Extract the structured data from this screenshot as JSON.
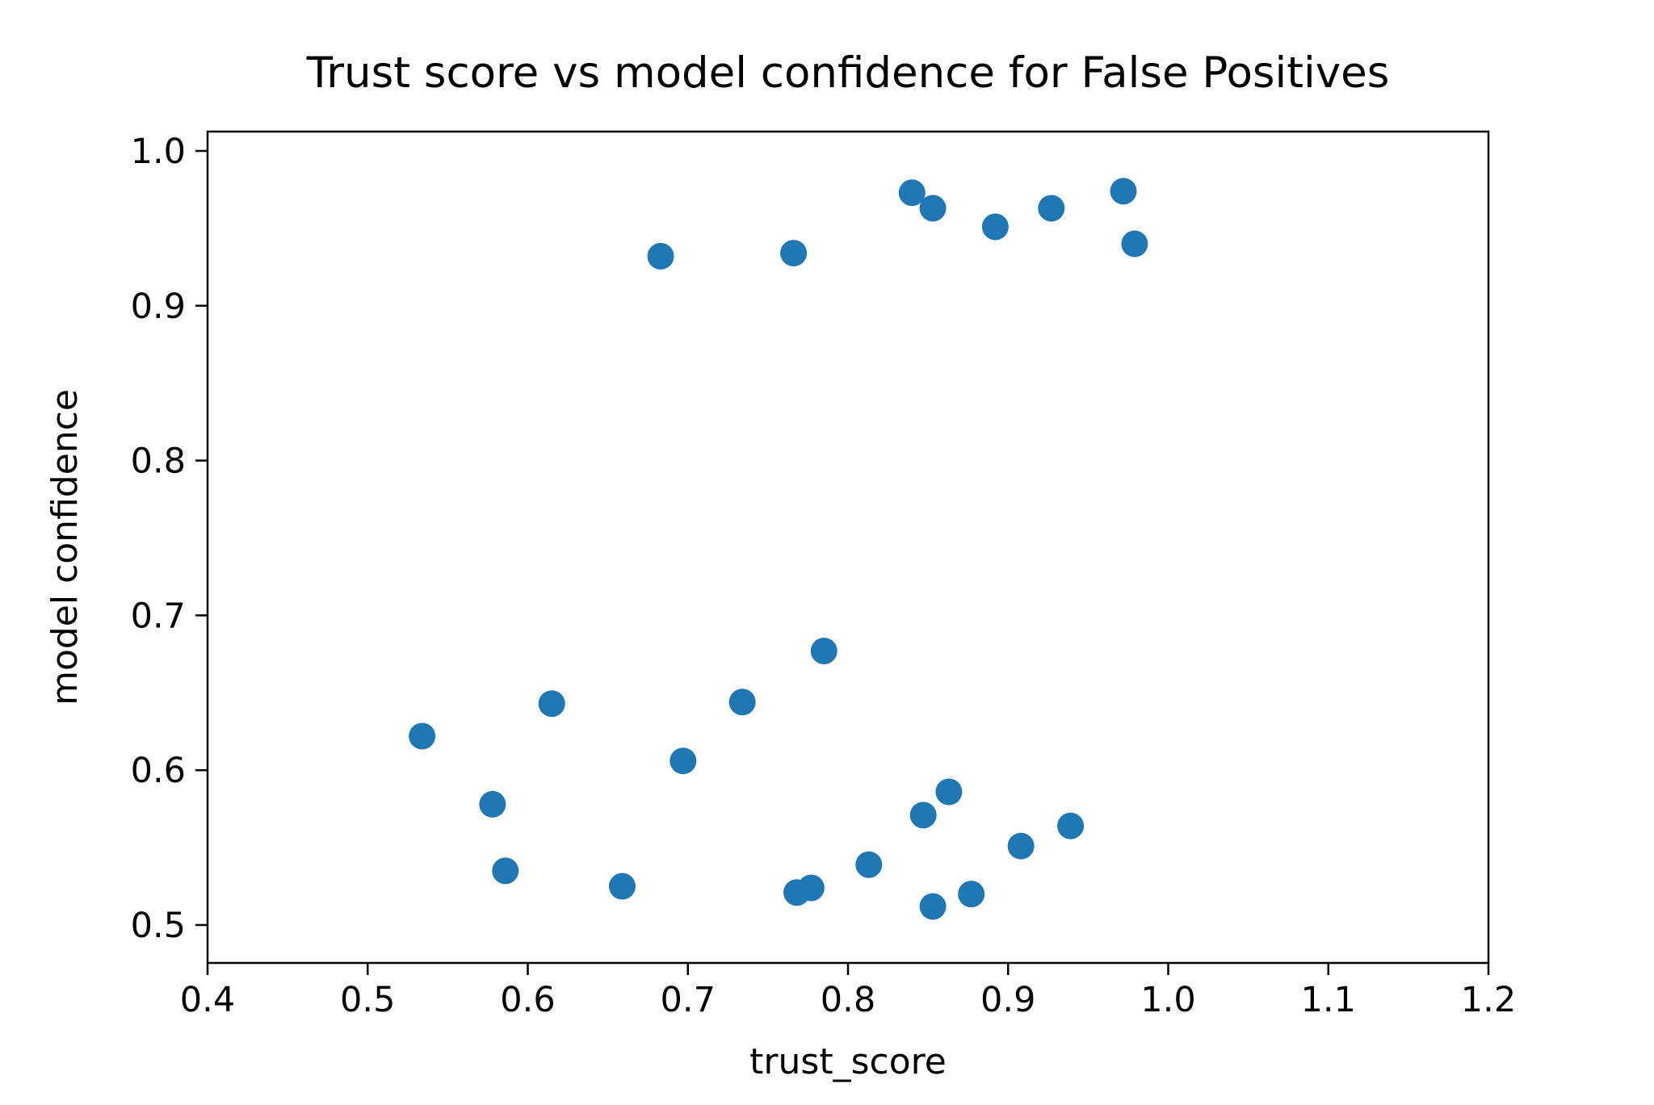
{
  "figure": {
    "background": "#ffffff",
    "text_color": "#000000"
  },
  "chart_data": {
    "type": "scatter",
    "title": "Trust score vs model confidence for False Positives",
    "xlabel": "trust_score",
    "ylabel": "model confidence",
    "xlim": [
      0.4,
      1.2
    ],
    "ylim": [
      0.4755,
      1.0125
    ],
    "xticks": [
      0.4,
      0.5,
      0.6,
      0.7,
      0.8,
      0.9,
      1.0,
      1.1,
      1.2
    ],
    "xtick_labels": [
      "0.4",
      "0.5",
      "0.6",
      "0.7",
      "0.8",
      "0.9",
      "1.0",
      "1.1",
      "1.2"
    ],
    "yticks": [
      0.5,
      0.6,
      0.7,
      0.8,
      0.9,
      1.0
    ],
    "ytick_labels": [
      "0.5",
      "0.6",
      "0.7",
      "0.8",
      "0.9",
      "1.0"
    ],
    "grid": false,
    "legend": null,
    "marker_color": "#1f77b4",
    "marker_radius_px": 16.5,
    "series": [
      {
        "name": "false_positives",
        "points": [
          [
            0.683,
            0.932
          ],
          [
            0.766,
            0.934
          ],
          [
            0.84,
            0.973
          ],
          [
            0.853,
            0.963
          ],
          [
            0.892,
            0.951
          ],
          [
            0.927,
            0.963
          ],
          [
            0.972,
            0.974
          ],
          [
            0.979,
            0.94
          ],
          [
            0.534,
            0.622
          ],
          [
            0.578,
            0.578
          ],
          [
            0.586,
            0.535
          ],
          [
            0.615,
            0.643
          ],
          [
            0.659,
            0.525
          ],
          [
            0.697,
            0.606
          ],
          [
            0.734,
            0.644
          ],
          [
            0.785,
            0.677
          ],
          [
            0.768,
            0.521
          ],
          [
            0.777,
            0.524
          ],
          [
            0.813,
            0.539
          ],
          [
            0.847,
            0.571
          ],
          [
            0.863,
            0.586
          ],
          [
            0.853,
            0.512
          ],
          [
            0.877,
            0.52
          ],
          [
            0.908,
            0.551
          ],
          [
            0.939,
            0.564
          ]
        ]
      }
    ]
  }
}
